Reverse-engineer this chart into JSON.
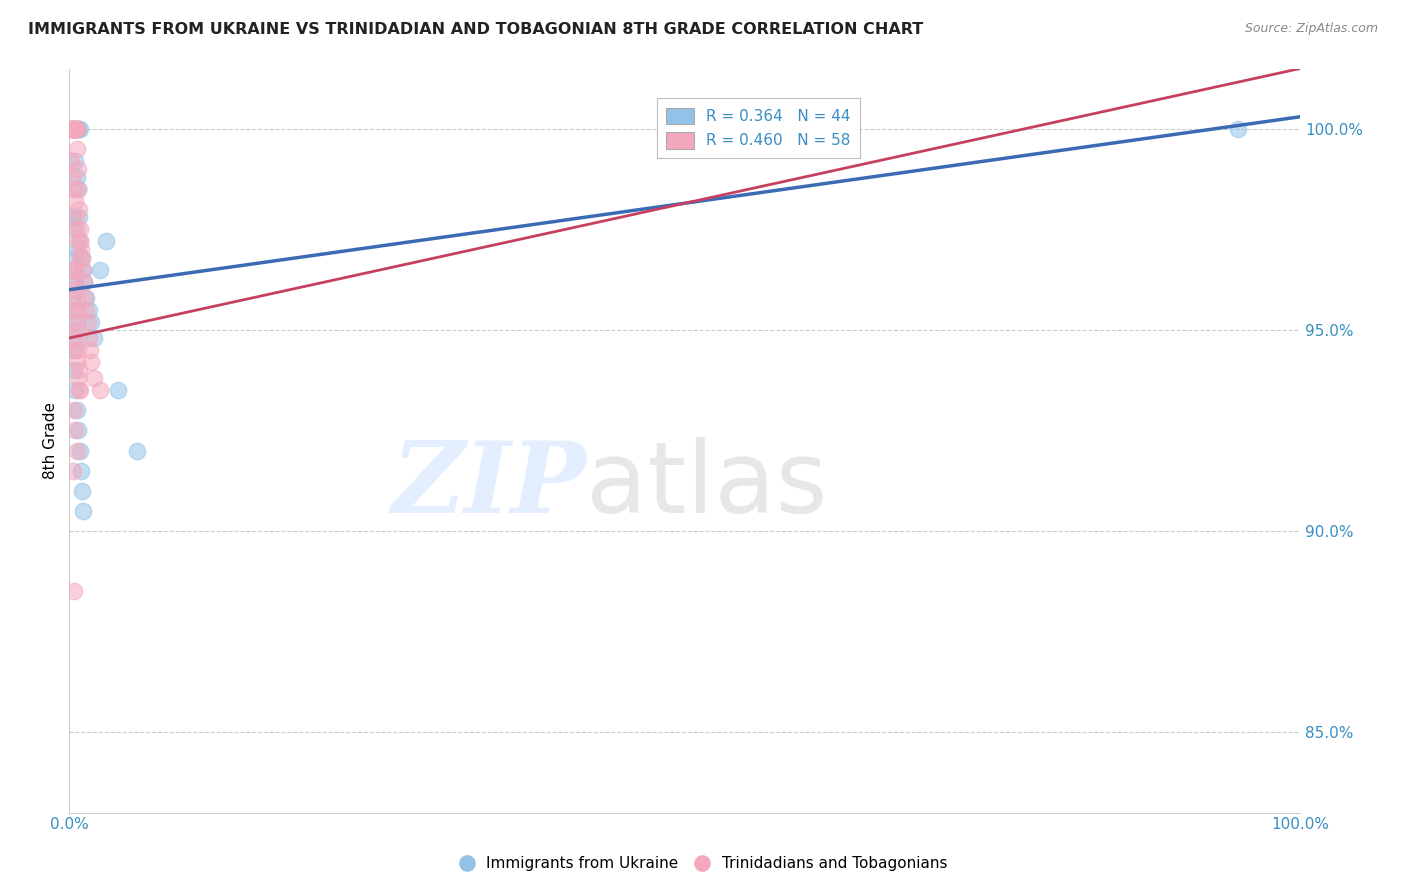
{
  "title": "IMMIGRANTS FROM UKRAINE VS TRINIDADIAN AND TOBAGONIAN 8TH GRADE CORRELATION CHART",
  "source": "Source: ZipAtlas.com",
  "ylabel": "8th Grade",
  "xlim": [
    0,
    100
  ],
  "ylim": [
    83,
    101.5
  ],
  "yticks": [
    85,
    90,
    95,
    100
  ],
  "ytick_labels": [
    "85.0%",
    "90.0%",
    "95.0%",
    "100.0%"
  ],
  "xtick_labels": [
    "0.0%",
    "100.0%"
  ],
  "blue_color": "#92C2E8",
  "pink_color": "#F4A8BC",
  "blue_line_color": "#3B6BB5",
  "pink_line_color": "#C84060",
  "legend_line1": "R = 0.364   N = 44",
  "legend_line2": "R = 0.460   N = 58",
  "blue_line_x0": 0,
  "blue_line_y0": 96.0,
  "blue_line_x1": 100,
  "blue_line_y1": 100.3,
  "pink_line_x0": 0,
  "pink_line_y0": 94.8,
  "pink_line_x1": 100,
  "pink_line_y1": 101.5,
  "ukraine_x": [
    0.15,
    0.25,
    0.35,
    0.45,
    0.55,
    0.65,
    0.75,
    0.85,
    0.5,
    0.6,
    0.7,
    0.8,
    0.9,
    1.0,
    1.1,
    1.2,
    1.4,
    1.6,
    1.8,
    2.0,
    2.5,
    3.0,
    0.3,
    0.4,
    0.6,
    0.55,
    0.45,
    0.35,
    0.25,
    0.5,
    0.6,
    0.7,
    4.0,
    5.5,
    0.3,
    0.4,
    0.5,
    0.65,
    0.75,
    0.85,
    0.95,
    1.05,
    1.15,
    95.0
  ],
  "ukraine_y": [
    100.0,
    100.0,
    100.0,
    100.0,
    100.0,
    100.0,
    100.0,
    100.0,
    99.2,
    98.8,
    98.5,
    97.8,
    97.2,
    96.8,
    96.5,
    96.2,
    95.8,
    95.5,
    95.2,
    94.8,
    96.5,
    97.2,
    97.8,
    97.5,
    97.0,
    96.8,
    96.5,
    96.2,
    95.8,
    95.5,
    95.2,
    94.8,
    93.5,
    92.0,
    94.5,
    94.0,
    93.5,
    93.0,
    92.5,
    92.0,
    91.5,
    91.0,
    90.5,
    100.0
  ],
  "tnt_x": [
    0.1,
    0.2,
    0.25,
    0.3,
    0.35,
    0.4,
    0.45,
    0.5,
    0.55,
    0.6,
    0.65,
    0.7,
    0.75,
    0.8,
    0.85,
    0.9,
    0.95,
    1.0,
    1.1,
    1.2,
    1.3,
    1.4,
    1.5,
    1.6,
    1.7,
    1.8,
    2.0,
    2.5,
    0.15,
    0.25,
    0.35,
    0.45,
    0.55,
    0.65,
    0.75,
    0.85,
    0.4,
    0.5,
    0.6,
    0.7,
    0.3,
    0.4,
    0.5,
    0.6,
    0.7,
    0.8,
    0.3,
    0.4,
    0.5,
    0.6,
    0.7,
    0.8,
    0.9,
    0.4,
    0.5,
    0.6,
    0.3,
    0.4
  ],
  "tnt_y": [
    100.0,
    100.0,
    100.0,
    100.0,
    100.0,
    100.0,
    100.0,
    100.0,
    100.0,
    100.0,
    99.5,
    99.0,
    98.5,
    98.0,
    97.5,
    97.2,
    97.0,
    96.8,
    96.5,
    96.2,
    95.8,
    95.5,
    95.2,
    94.8,
    94.5,
    94.2,
    93.8,
    93.5,
    99.2,
    98.8,
    98.5,
    98.2,
    97.8,
    97.5,
    97.2,
    96.8,
    96.5,
    96.2,
    95.8,
    95.5,
    95.2,
    94.8,
    94.5,
    94.2,
    93.8,
    93.5,
    96.5,
    96.0,
    95.5,
    95.0,
    94.5,
    94.0,
    93.5,
    93.0,
    92.5,
    92.0,
    91.5,
    88.5
  ]
}
